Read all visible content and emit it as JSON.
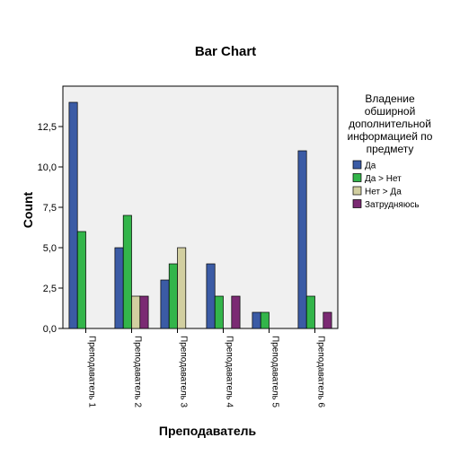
{
  "chart_data": {
    "type": "bar",
    "title": "Bar Chart",
    "xlabel": "Преподаватель",
    "ylabel": "Count",
    "categories": [
      "Преподаватель 1",
      "Преподаватель 2",
      "Преподаватель 3",
      "Преподаватель 4",
      "Преподаватель 5",
      "Преподаватель 6"
    ],
    "ylim": [
      0,
      15
    ],
    "yticks": [
      0,
      2.5,
      5,
      7.5,
      10,
      12.5
    ],
    "ytick_labels": [
      "0,0",
      "2,5",
      "5,0",
      "7,5",
      "10,0",
      "12,5"
    ],
    "grid": false,
    "legend": {
      "placement": "right",
      "title": "Владение обширной дополнительной информацией по предмету",
      "title_lines": [
        "Владение",
        "обширной",
        "дополнительной",
        "информацией по",
        "предмету"
      ]
    },
    "series": [
      {
        "name": "Да",
        "color": "#3B5BA5",
        "values": [
          14,
          5,
          3,
          4,
          1,
          11
        ]
      },
      {
        "name": "Да > Нет",
        "color": "#33B54A",
        "values": [
          6,
          7,
          4,
          2,
          1,
          2
        ]
      },
      {
        "name": "Нет > Да",
        "color": "#D2CFA0",
        "values": [
          0,
          2,
          5,
          0,
          0,
          0
        ]
      },
      {
        "name": "Затрудняюсь",
        "color": "#7B2A73",
        "values": [
          0,
          2,
          0,
          2,
          0,
          1
        ]
      }
    ],
    "plot_background": "#F0F0F0"
  }
}
